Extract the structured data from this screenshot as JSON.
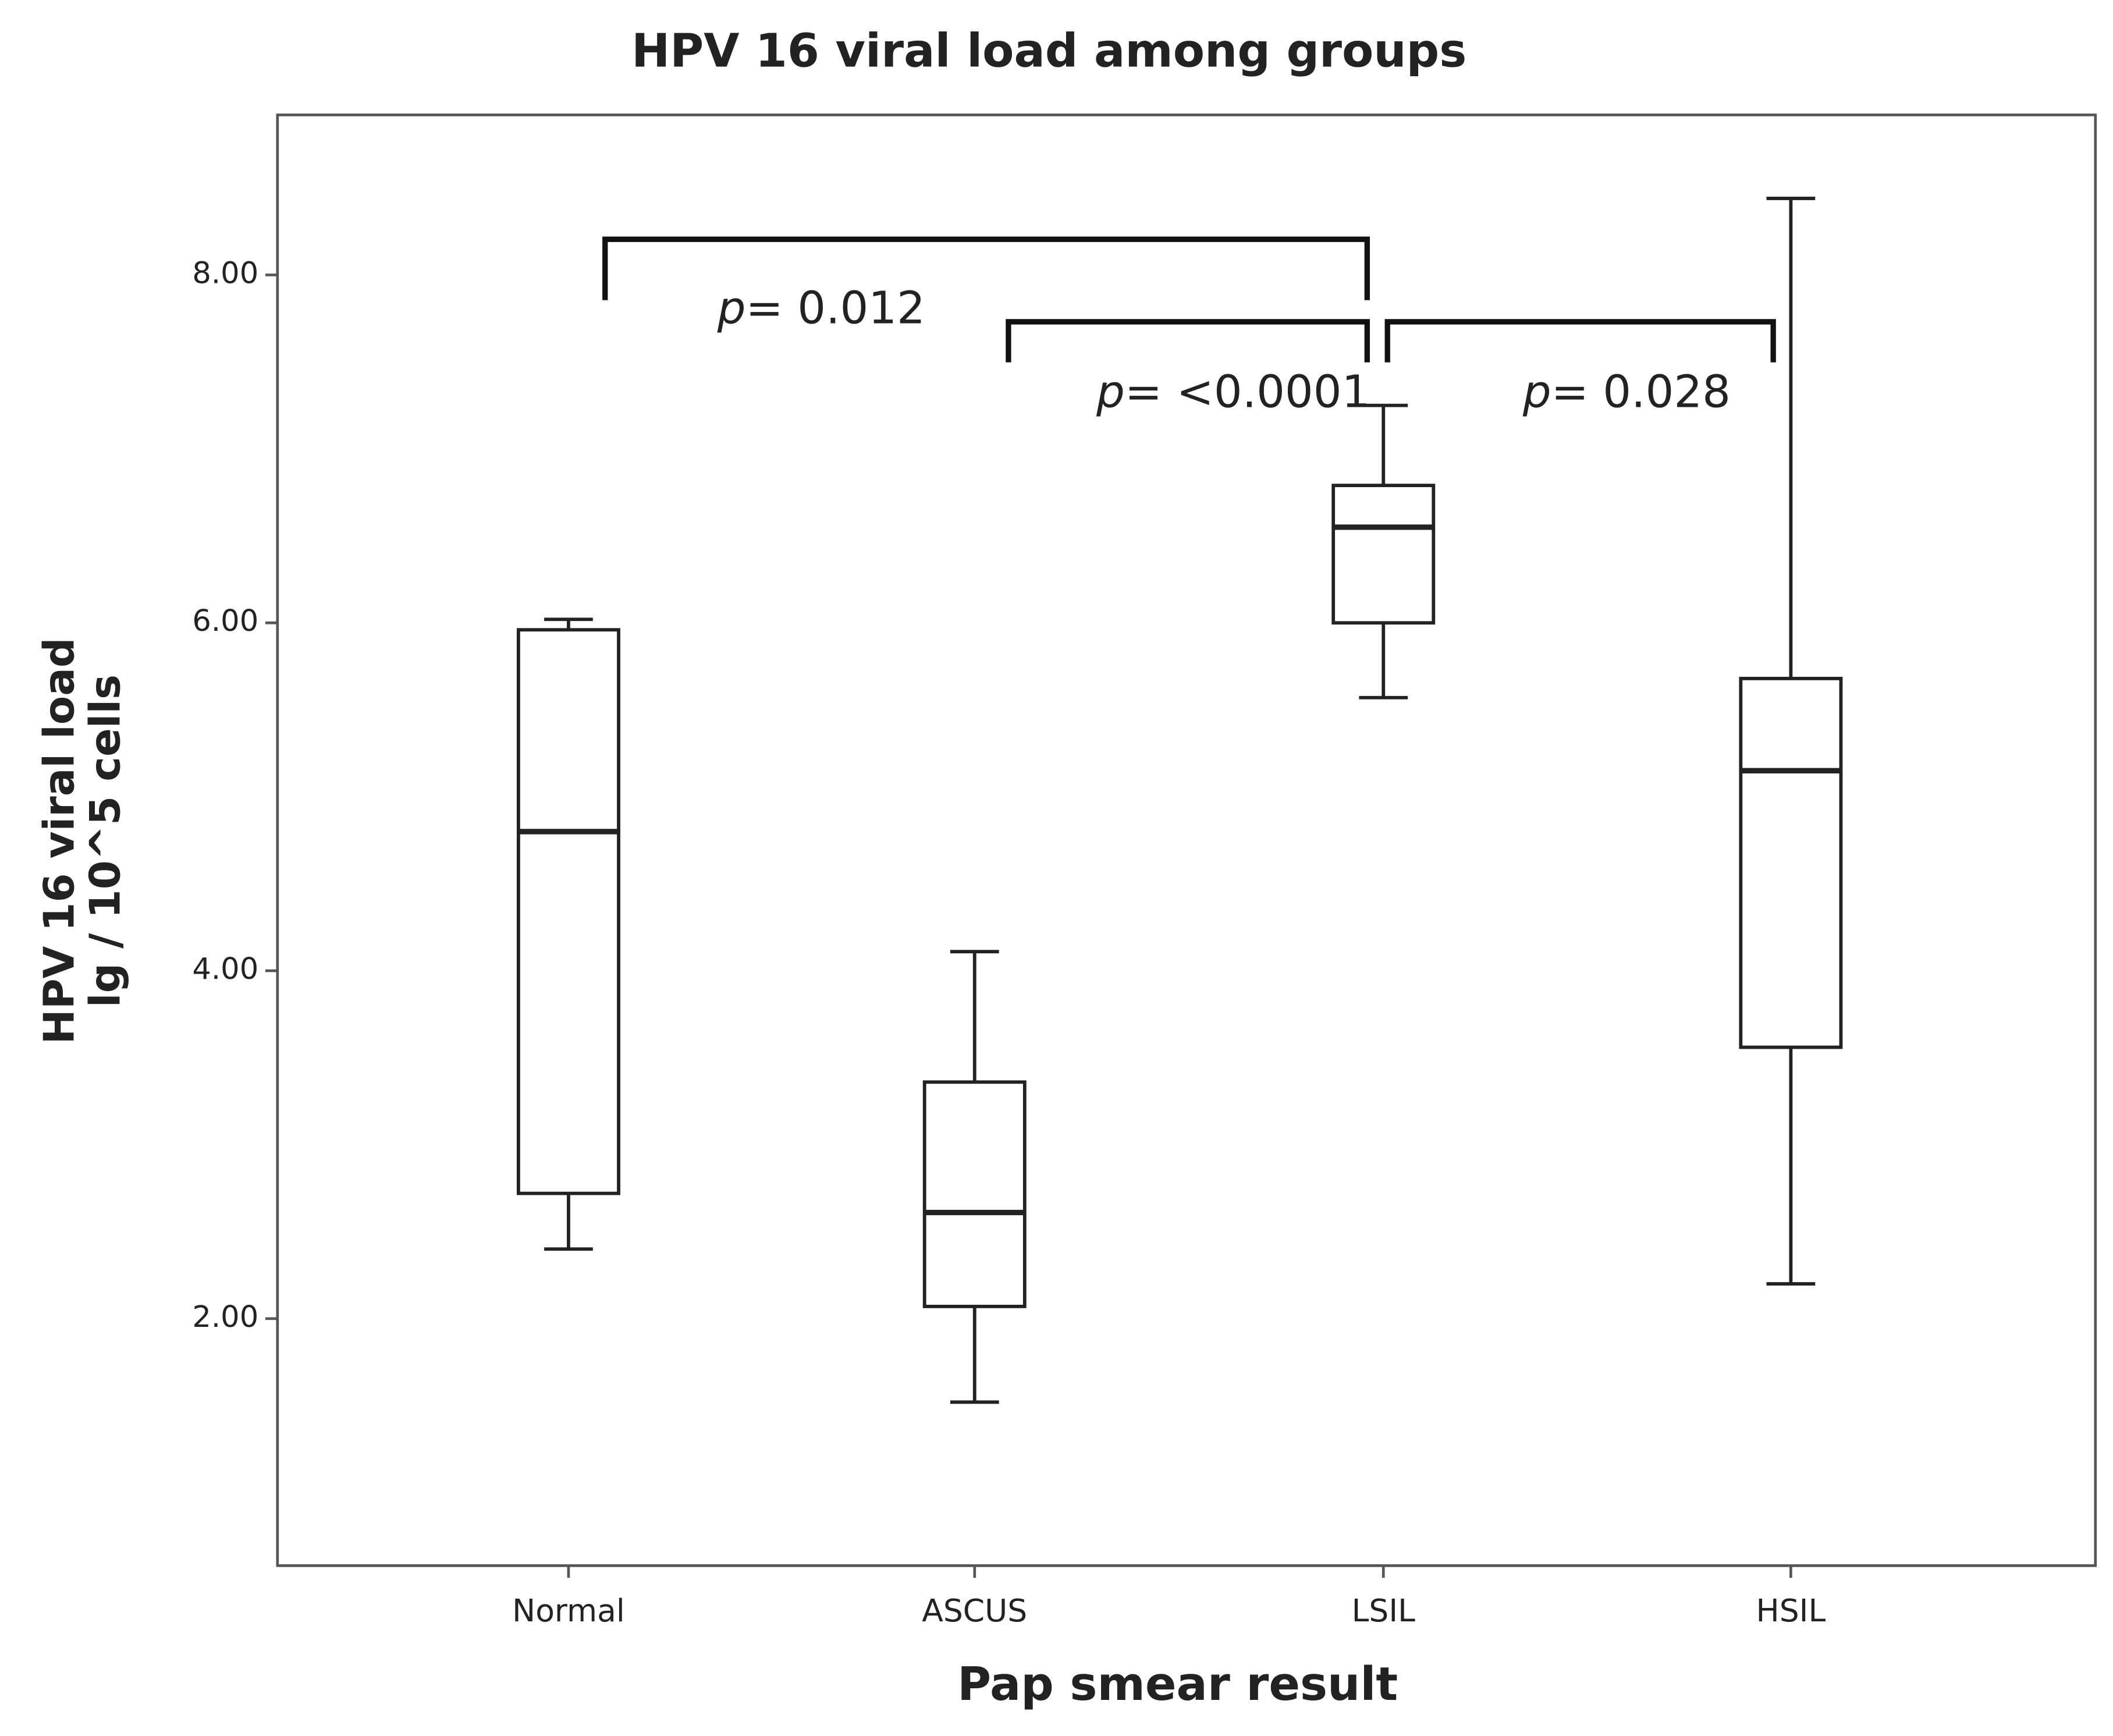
{
  "chart_data": {
    "type": "box",
    "title": "HPV 16 viral load among groups",
    "x_label": "Pap smear result",
    "y_label": [
      "HPV 16 viral load",
      "lg / 10^5 cells"
    ],
    "categories": [
      "Normal",
      "ASCUS",
      "LSIL",
      "HSIL"
    ],
    "min": [
      2.4,
      1.52,
      5.57,
      2.2
    ],
    "q1": [
      2.72,
      2.07,
      6.0,
      3.56
    ],
    "median": [
      4.8,
      2.61,
      6.55,
      5.15
    ],
    "q3": [
      5.96,
      3.36,
      6.79,
      5.68
    ],
    "max": [
      6.02,
      4.11,
      7.25,
      8.44
    ],
    "color": "#222222",
    "ylim": [
      0.58,
      8.92
    ],
    "yticks": [
      {
        "value": 2,
        "label": "2.00"
      },
      {
        "value": 4,
        "label": "4.00"
      },
      {
        "value": 6,
        "label": "6.00"
      },
      {
        "value": 8,
        "label": "8.00"
      }
    ],
    "annotations": [
      {
        "italic": "p",
        "text": "= 0.012"
      },
      {
        "italic": "p",
        "text": "= <0.0001"
      },
      {
        "italic": "p",
        "text": "= 0.028"
      }
    ]
  }
}
